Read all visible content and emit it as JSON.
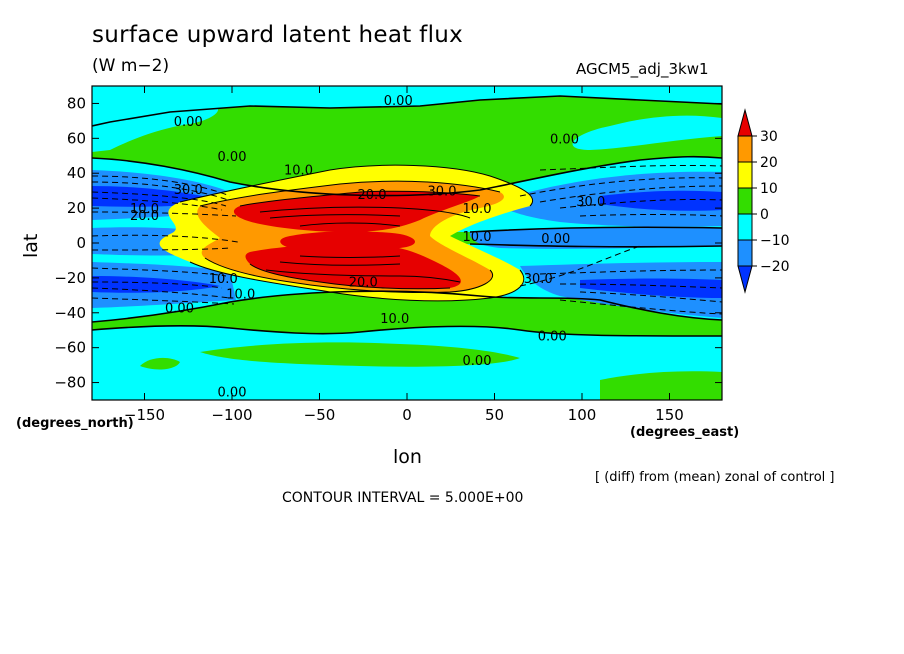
{
  "chart_data": {
    "type": "contour",
    "title": "surface upward latent heat flux",
    "units": "(W m−2)",
    "experiment": "AGCM5_adj_3kw1",
    "xlabel": "lon",
    "ylabel": "lat",
    "x_coord_label": "(degrees_east)",
    "y_coord_label": "(degrees_north)",
    "xlim": [
      -180,
      180
    ],
    "ylim": [
      -90,
      90
    ],
    "x_ticks": [
      -150,
      -100,
      -50,
      0,
      50,
      100,
      150
    ],
    "y_ticks": [
      80,
      60,
      40,
      20,
      0,
      -20,
      -40,
      -60,
      -80
    ],
    "note": "[ (diff) from (mean) zonal of control ]",
    "contour_interval_text": "CONTOUR INTERVAL = 5.000E+00",
    "colorbar": {
      "levels": [
        30,
        20,
        10,
        0,
        -10,
        -20
      ],
      "colors": {
        "gt30": "#e60000",
        "20to30": "#ff9900",
        "10to20": "#ffff00",
        "0to10": "#33dd00",
        "m10to0": "#00ffff",
        "m20tom10": "#1e90ff",
        "lt_m20": "#0033ff"
      }
    },
    "contour_labels": [
      {
        "text": "0.00",
        "lon": -5,
        "lat": 82
      },
      {
        "text": "0.00",
        "lon": -125,
        "lat": 70
      },
      {
        "text": "0.00",
        "lon": -100,
        "lat": 50
      },
      {
        "text": "0.00",
        "lon": 90,
        "lat": 60
      },
      {
        "text": "0.00",
        "lon": 85,
        "lat": 3
      },
      {
        "text": "0.00",
        "lon": -130,
        "lat": -37
      },
      {
        "text": "0.00",
        "lon": 83,
        "lat": -53
      },
      {
        "text": "0.00",
        "lon": 40,
        "lat": -67
      },
      {
        "text": "0.00",
        "lon": -100,
        "lat": -85
      },
      {
        "text": "10.0",
        "lon": -62,
        "lat": 42
      },
      {
        "text": "10.0",
        "lon": 40,
        "lat": 20
      },
      {
        "text": "10.0",
        "lon": 40,
        "lat": 4
      },
      {
        "text": "10.0",
        "lon": -105,
        "lat": -20
      },
      {
        "text": "10.0",
        "lon": -95,
        "lat": -29
      },
      {
        "text": "10.0",
        "lon": -7,
        "lat": -43
      },
      {
        "text": "20.0",
        "lon": -20,
        "lat": 28
      },
      {
        "text": "20.0",
        "lon": -25,
        "lat": -22
      },
      {
        "text": "30.0",
        "lon": 20,
        "lat": 30
      },
      {
        "text": "30.0",
        "lon": -125,
        "lat": 31
      },
      {
        "text": "30.0",
        "lon": 105,
        "lat": 24
      },
      {
        "text": "30.0",
        "lon": 75,
        "lat": -20
      },
      {
        "text": "10.0",
        "lon": -150,
        "lat": 20
      },
      {
        "text": "20.0",
        "lon": -150,
        "lat": 16
      }
    ]
  }
}
